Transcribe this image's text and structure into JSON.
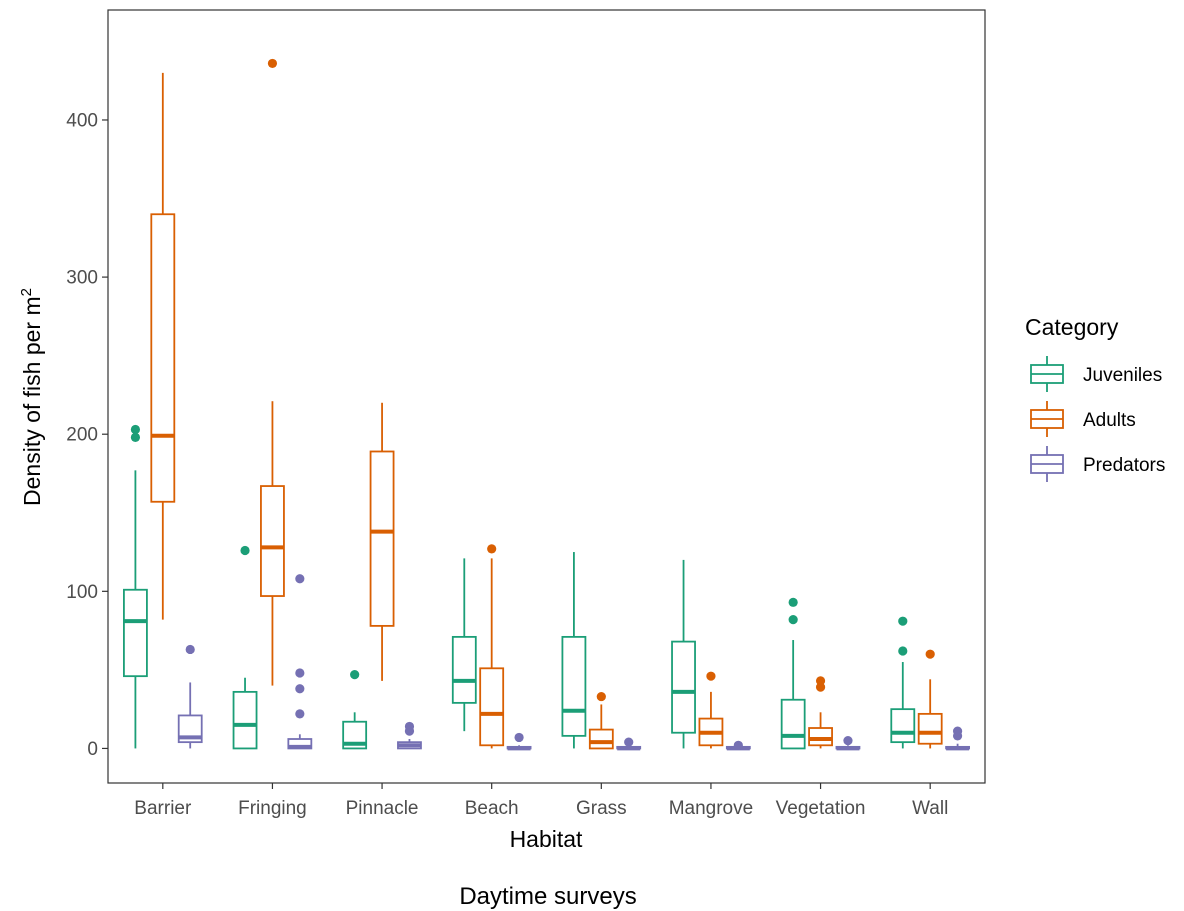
{
  "chart_data": {
    "type": "boxplot",
    "xlabel": "Habitat",
    "ylabel": "Density of fish per m",
    "ylabel_superscript": "2",
    "caption": "Daytime surveys",
    "ylim": [
      -22,
      470
    ],
    "yticks": [
      0,
      100,
      200,
      300,
      400
    ],
    "grid": false,
    "legend": {
      "title": "Category",
      "placement": "right"
    },
    "categories": [
      "Barrier",
      "Fringing",
      "Pinnacle",
      "Beach",
      "Grass",
      "Mangrove",
      "Vegetation",
      "Wall"
    ],
    "series": [
      {
        "name": "Juveniles",
        "color": "#1b9e77",
        "boxes": [
          {
            "whisker_low": 0,
            "q1": 46,
            "median": 81,
            "q3": 101,
            "whisker_high": 177,
            "outliers": [
              198,
              203
            ]
          },
          {
            "whisker_low": 0,
            "q1": 0,
            "median": 15,
            "q3": 36,
            "whisker_high": 45,
            "outliers": [
              126
            ]
          },
          {
            "whisker_low": 0,
            "q1": 0,
            "median": 3,
            "q3": 17,
            "whisker_high": 23,
            "outliers": [
              47
            ]
          },
          {
            "whisker_low": 11,
            "q1": 29,
            "median": 43,
            "q3": 71,
            "whisker_high": 121,
            "outliers": []
          },
          {
            "whisker_low": 0,
            "q1": 8,
            "median": 24,
            "q3": 71,
            "whisker_high": 125,
            "outliers": []
          },
          {
            "whisker_low": 0,
            "q1": 10,
            "median": 36,
            "q3": 68,
            "whisker_high": 120,
            "outliers": []
          },
          {
            "whisker_low": 0,
            "q1": 0,
            "median": 8,
            "q3": 31,
            "whisker_high": 69,
            "outliers": [
              82,
              93
            ]
          },
          {
            "whisker_low": 0,
            "q1": 4,
            "median": 10,
            "q3": 25,
            "whisker_high": 55,
            "outliers": [
              62,
              81
            ]
          }
        ]
      },
      {
        "name": "Adults",
        "color": "#d95f02",
        "boxes": [
          {
            "whisker_low": 82,
            "q1": 157,
            "median": 199,
            "q3": 340,
            "whisker_high": 430,
            "outliers": []
          },
          {
            "whisker_low": 40,
            "q1": 97,
            "median": 128,
            "q3": 167,
            "whisker_high": 221,
            "outliers": [
              436
            ]
          },
          {
            "whisker_low": 43,
            "q1": 78,
            "median": 138,
            "q3": 189,
            "whisker_high": 220,
            "outliers": []
          },
          {
            "whisker_low": 0,
            "q1": 2,
            "median": 22,
            "q3": 51,
            "whisker_high": 121,
            "outliers": [
              127
            ]
          },
          {
            "whisker_low": 0,
            "q1": 0,
            "median": 4,
            "q3": 12,
            "whisker_high": 28,
            "outliers": [
              33
            ]
          },
          {
            "whisker_low": 0,
            "q1": 2,
            "median": 10,
            "q3": 19,
            "whisker_high": 36,
            "outliers": [
              46
            ]
          },
          {
            "whisker_low": 0,
            "q1": 2,
            "median": 6,
            "q3": 13,
            "whisker_high": 23,
            "outliers": [
              39,
              43
            ]
          },
          {
            "whisker_low": 0,
            "q1": 3,
            "median": 10,
            "q3": 22,
            "whisker_high": 44,
            "outliers": [
              60
            ]
          }
        ]
      },
      {
        "name": "Predators",
        "color": "#7570b3",
        "boxes": [
          {
            "whisker_low": 0,
            "q1": 4,
            "median": 7,
            "q3": 21,
            "whisker_high": 42,
            "outliers": [
              63
            ]
          },
          {
            "whisker_low": 0,
            "q1": 0,
            "median": 1,
            "q3": 6,
            "whisker_high": 9,
            "outliers": [
              22,
              38,
              48,
              108
            ]
          },
          {
            "whisker_low": 0,
            "q1": 0,
            "median": 2,
            "q3": 4,
            "whisker_high": 6,
            "outliers": [
              11,
              14
            ]
          },
          {
            "whisker_low": 0,
            "q1": 0,
            "median": 0,
            "q3": 1,
            "whisker_high": 2,
            "outliers": [
              7
            ]
          },
          {
            "whisker_low": 0,
            "q1": 0,
            "median": 0,
            "q3": 1,
            "whisker_high": 2,
            "outliers": [
              4
            ]
          },
          {
            "whisker_low": 0,
            "q1": 0,
            "median": 0,
            "q3": 1,
            "whisker_high": 1,
            "outliers": [
              2
            ]
          },
          {
            "whisker_low": 0,
            "q1": 0,
            "median": 0,
            "q3": 1,
            "whisker_high": 2,
            "outliers": [
              5
            ]
          },
          {
            "whisker_low": 0,
            "q1": 0,
            "median": 0,
            "q3": 1,
            "whisker_high": 3,
            "outliers": [
              8,
              11
            ]
          }
        ]
      }
    ]
  }
}
